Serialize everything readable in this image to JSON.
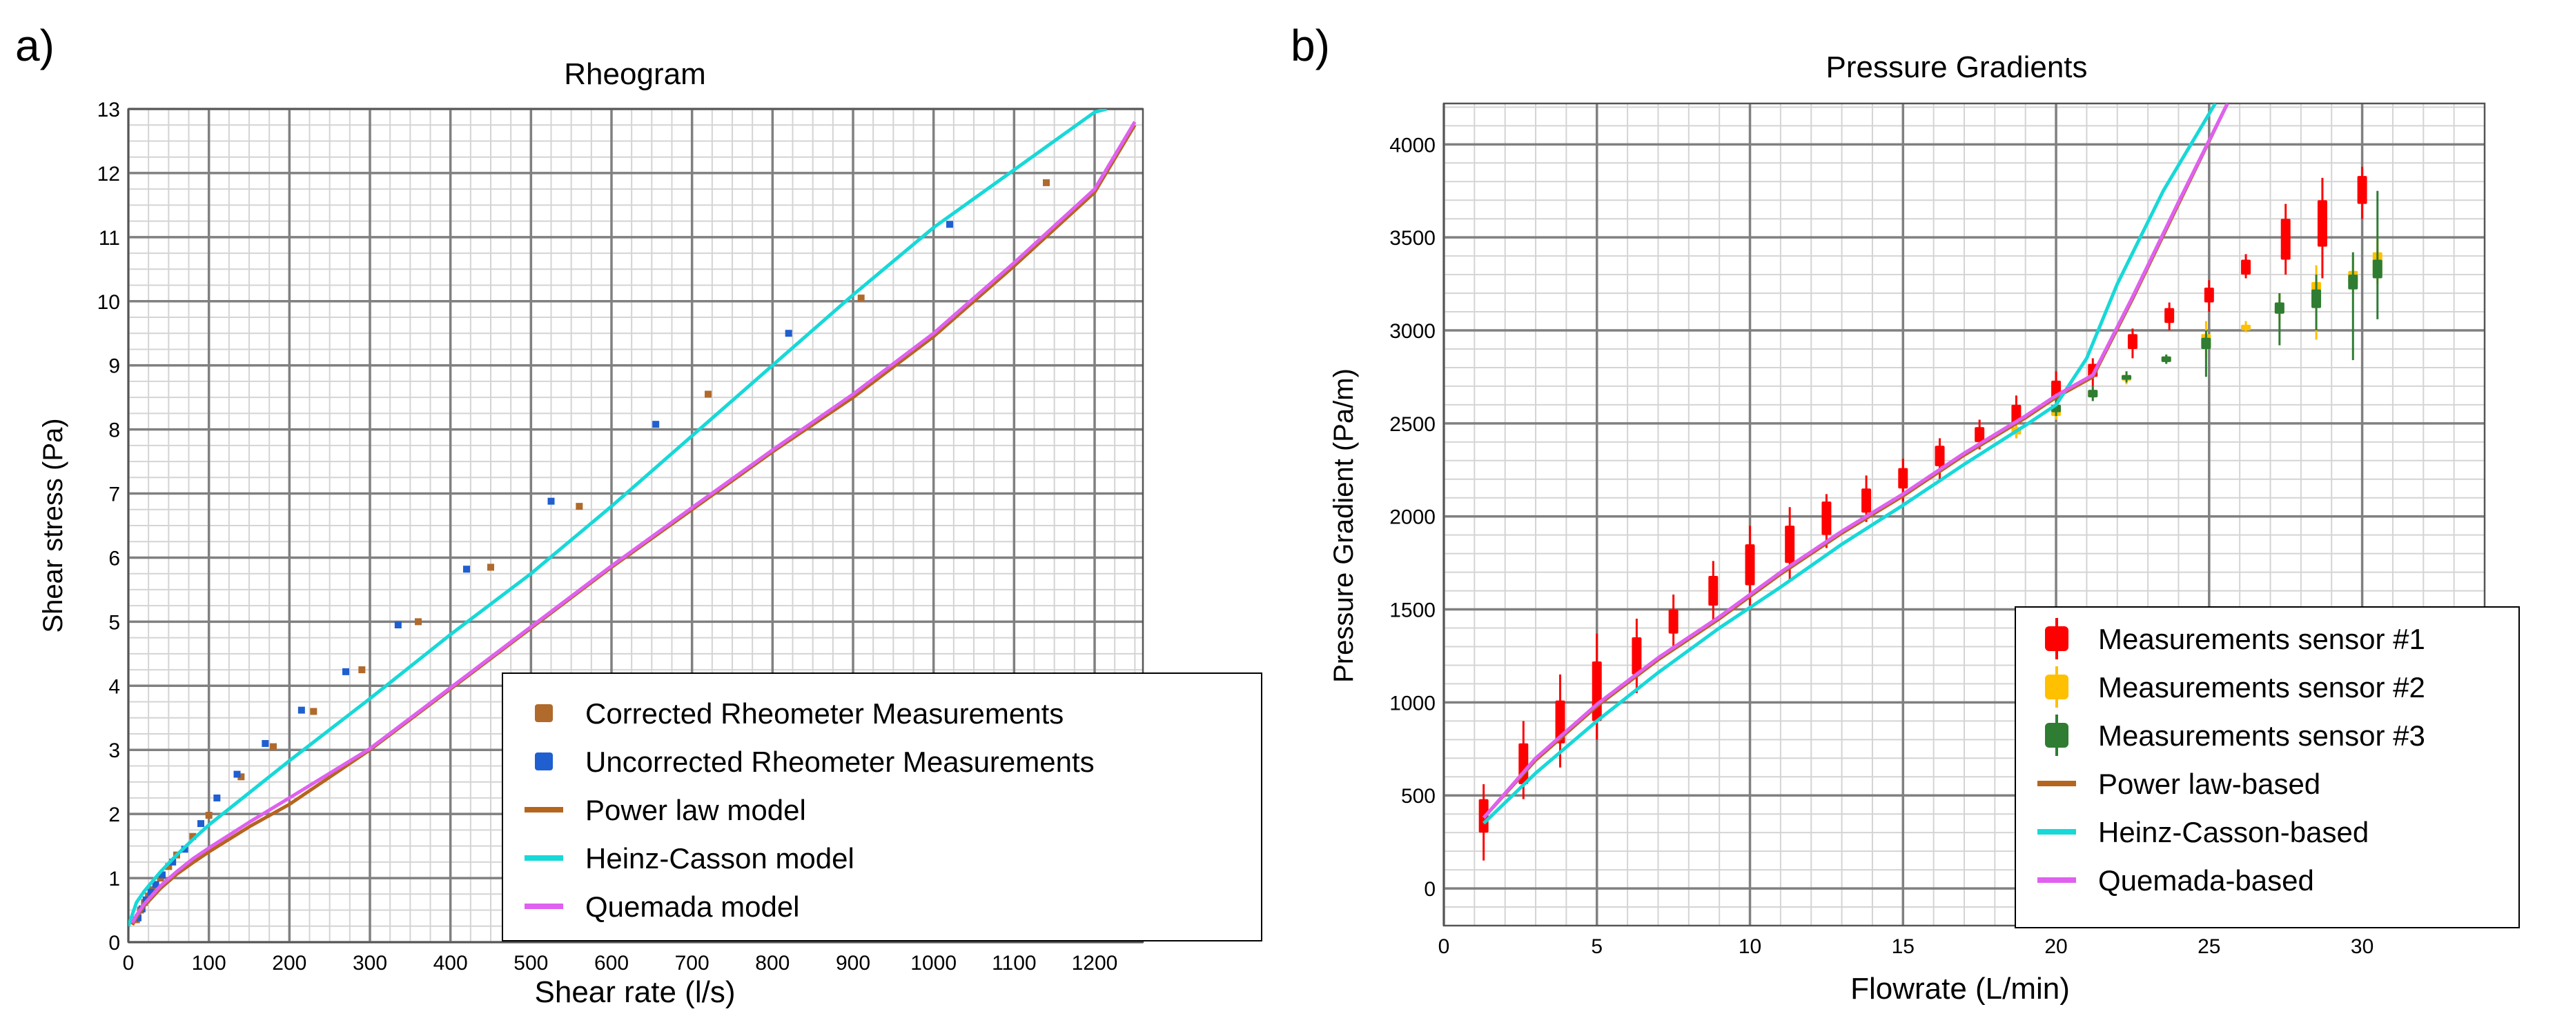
{
  "chart_data": [
    {
      "panel_label": "a)",
      "type": "scatter",
      "title": "Rheogram",
      "xlabel": "Shear rate (l/s)",
      "ylabel": "Shear stress (Pa)",
      "xlim": [
        0,
        1260
      ],
      "ylim": [
        0,
        13
      ],
      "xticks": [
        0,
        100,
        200,
        300,
        400,
        500,
        600,
        700,
        800,
        900,
        1000,
        1100,
        1200
      ],
      "yticks": [
        0,
        1,
        2,
        3,
        4,
        5,
        6,
        7,
        8,
        9,
        10,
        11,
        12,
        13
      ],
      "grid": true,
      "legend_position": "bottom-right",
      "series": [
        {
          "name": "Corrected Rheometer Measurements",
          "kind": "scatter",
          "color": "#b06a2c",
          "x": [
            10,
            15,
            20,
            25,
            30,
            40,
            50,
            60,
            80,
            100,
            140,
            180,
            230,
            290,
            360,
            450,
            560,
            720,
            910,
            1140
          ],
          "y": [
            0.35,
            0.5,
            0.62,
            0.72,
            0.82,
            1.0,
            1.18,
            1.36,
            1.65,
            1.98,
            2.58,
            3.05,
            3.6,
            4.25,
            5.0,
            5.85,
            6.8,
            8.55,
            10.05,
            11.85
          ]
        },
        {
          "name": "Uncorrected Rheometer Measurements",
          "kind": "scatter",
          "color": "#1f5fd0",
          "x": [
            12,
            17,
            22,
            28,
            34,
            42,
            55,
            70,
            90,
            110,
            135,
            170,
            215,
            270,
            335,
            420,
            525,
            655,
            820,
            1020
          ],
          "y": [
            0.38,
            0.52,
            0.66,
            0.78,
            0.9,
            1.05,
            1.25,
            1.45,
            1.85,
            2.25,
            2.62,
            3.1,
            3.62,
            4.22,
            4.95,
            5.82,
            6.88,
            8.08,
            9.5,
            11.2
          ]
        },
        {
          "name": "Power law model",
          "kind": "line",
          "color": "#b5651d",
          "x": [
            5,
            10,
            20,
            40,
            60,
            80,
            100,
            150,
            200,
            300,
            400,
            500,
            600,
            700,
            800,
            900,
            1000,
            1100,
            1200,
            1250
          ],
          "y": [
            0.27,
            0.39,
            0.57,
            0.84,
            1.06,
            1.24,
            1.41,
            1.8,
            2.15,
            3.0,
            3.95,
            4.9,
            5.85,
            6.75,
            7.65,
            8.5,
            9.45,
            10.55,
            11.7,
            12.75
          ]
        },
        {
          "name": "Heinz-Casson model",
          "kind": "line",
          "color": "#18d8d8",
          "x": [
            0,
            10,
            20,
            40,
            60,
            80,
            100,
            150,
            200,
            300,
            400,
            500,
            600,
            700,
            800,
            900,
            1000,
            1100,
            1200,
            1215
          ],
          "y": [
            0.25,
            0.62,
            0.8,
            1.1,
            1.36,
            1.6,
            1.83,
            2.33,
            2.83,
            3.8,
            4.8,
            5.75,
            6.8,
            7.9,
            9.0,
            10.1,
            11.15,
            12.05,
            12.95,
            13.0
          ]
        },
        {
          "name": "Quemada model",
          "kind": "line",
          "color": "#e060f0",
          "x": [
            5,
            10,
            20,
            40,
            60,
            80,
            100,
            150,
            200,
            300,
            400,
            500,
            600,
            700,
            800,
            900,
            1000,
            1100,
            1200,
            1250
          ],
          "y": [
            0.3,
            0.42,
            0.6,
            0.88,
            1.1,
            1.3,
            1.47,
            1.87,
            2.25,
            3.02,
            3.97,
            4.92,
            5.87,
            6.78,
            7.68,
            8.55,
            9.5,
            10.6,
            11.75,
            12.8
          ]
        }
      ]
    },
    {
      "panel_label": "b)",
      "type": "line",
      "title": "Pressure Gradients",
      "xlabel": "Flowrate (L/min)",
      "ylabel": "Pressure Gradient (Pa/m)",
      "xlim": [
        0,
        34
      ],
      "ylim": [
        -200,
        4220
      ],
      "xticks": [
        0,
        5,
        10,
        15,
        20,
        25,
        30
      ],
      "yticks": [
        0,
        500,
        1000,
        1500,
        2000,
        2500,
        3000,
        3500,
        4000
      ],
      "grid": true,
      "legend_position": "bottom-right",
      "series": [
        {
          "name": "Measurements sensor #1",
          "kind": "box",
          "color": "#ff0000",
          "x": [
            1.3,
            2.6,
            3.8,
            5.0,
            6.3,
            7.5,
            8.8,
            10.0,
            11.3,
            12.5,
            13.8,
            15.0,
            16.2,
            17.5,
            18.7,
            20.0,
            21.2,
            22.5,
            23.7,
            25.0,
            26.2,
            27.5,
            28.7,
            30.0
          ],
          "low": [
            150,
            480,
            650,
            800,
            1050,
            1280,
            1420,
            1520,
            1650,
            1830,
            1970,
            2080,
            2200,
            2360,
            2420,
            2580,
            2700,
            2850,
            3000,
            3100,
            3280,
            3300,
            3280,
            3600
          ],
          "q1": [
            300,
            560,
            780,
            900,
            1150,
            1370,
            1520,
            1630,
            1750,
            1900,
            2020,
            2150,
            2270,
            2400,
            2500,
            2630,
            2750,
            2900,
            3040,
            3150,
            3300,
            3380,
            3450,
            3680
          ],
          "q3": [
            480,
            780,
            1010,
            1220,
            1350,
            1500,
            1680,
            1850,
            1950,
            2080,
            2150,
            2260,
            2380,
            2480,
            2600,
            2730,
            2820,
            2980,
            3120,
            3230,
            3380,
            3600,
            3700,
            3830
          ],
          "high": [
            560,
            900,
            1150,
            1370,
            1450,
            1580,
            1760,
            1950,
            2050,
            2120,
            2220,
            2310,
            2420,
            2520,
            2650,
            2780,
            2850,
            3010,
            3150,
            3270,
            3410,
            3680,
            3820,
            3880
          ]
        },
        {
          "name": "Measurements sensor #2",
          "kind": "box",
          "color": "#ffc000",
          "x": [
            18.7,
            20.0,
            21.2,
            22.3,
            23.6,
            24.9,
            26.2,
            27.3,
            28.5,
            29.7,
            30.5
          ],
          "low": [
            2420,
            2520,
            2620,
            2710,
            2820,
            2850,
            2990,
            3050,
            2950,
            3200,
            3250
          ],
          "q1": [
            2440,
            2540,
            2640,
            2730,
            2830,
            2900,
            3000,
            3090,
            3150,
            3250,
            3300
          ],
          "q3": [
            2480,
            2580,
            2680,
            2760,
            2860,
            2980,
            3030,
            3130,
            3260,
            3320,
            3420
          ],
          "high": [
            2500,
            2600,
            2700,
            2780,
            2870,
            3050,
            3050,
            3200,
            3350,
            3400,
            3500
          ]
        },
        {
          "name": "Measurements sensor #3",
          "kind": "box",
          "color": "#2e7d32",
          "x": [
            20.0,
            21.2,
            22.3,
            23.6,
            24.9,
            27.3,
            28.5,
            29.7,
            30.5
          ],
          "low": [
            2540,
            2620,
            2720,
            2820,
            2750,
            2920,
            3000,
            2840,
            3060
          ],
          "q1": [
            2560,
            2640,
            2735,
            2830,
            2900,
            3090,
            3120,
            3220,
            3280
          ],
          "q3": [
            2600,
            2680,
            2760,
            2860,
            2960,
            3150,
            3220,
            3300,
            3380
          ],
          "high": [
            2630,
            2700,
            2780,
            2870,
            3000,
            3200,
            3300,
            3420,
            3750
          ]
        },
        {
          "name": "Power law-based",
          "kind": "line",
          "color": "#b5651d",
          "x": [
            1.3,
            3,
            5,
            7,
            9,
            11,
            13,
            15,
            17,
            19,
            20,
            21.2,
            22.5,
            24,
            25.6
          ],
          "y": [
            380,
            690,
            980,
            1230,
            1450,
            1690,
            1910,
            2110,
            2330,
            2530,
            2640,
            2750,
            3170,
            3680,
            4220
          ]
        },
        {
          "name": "Heinz-Casson-based",
          "kind": "line",
          "color": "#18d8d8",
          "x": [
            1.3,
            3,
            5,
            7,
            9,
            11,
            13,
            15,
            17,
            19,
            20,
            21.0,
            22.0,
            23.5,
            25.2
          ],
          "y": [
            350,
            620,
            900,
            1160,
            1400,
            1620,
            1850,
            2060,
            2280,
            2490,
            2600,
            2850,
            3250,
            3750,
            4220
          ]
        },
        {
          "name": "Quemada-based",
          "kind": "line",
          "color": "#e060f0",
          "x": [
            1.3,
            3,
            5,
            7,
            9,
            11,
            13,
            15,
            17,
            19,
            20,
            21.2,
            22.5,
            24,
            25.6
          ],
          "y": [
            380,
            700,
            990,
            1240,
            1460,
            1700,
            1920,
            2120,
            2340,
            2540,
            2650,
            2760,
            3180,
            3690,
            4220
          ]
        }
      ]
    }
  ]
}
